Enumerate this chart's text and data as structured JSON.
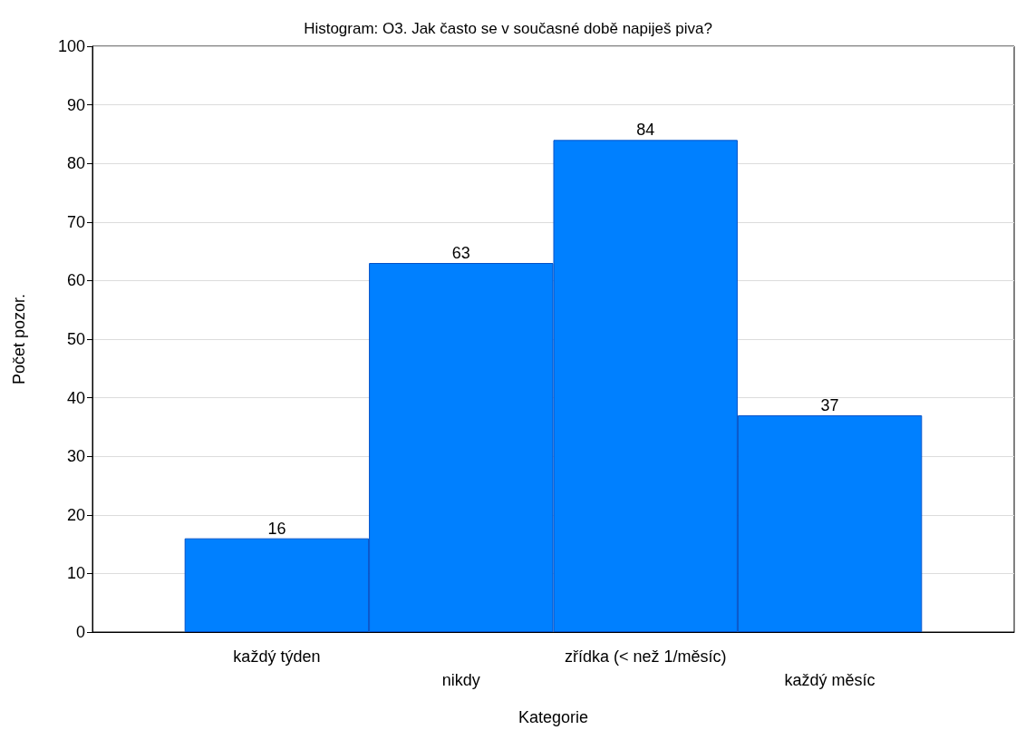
{
  "chart_data": {
    "type": "bar",
    "title": "Histogram: O3. Jak často se v současné době napiješ piva?",
    "xlabel": "Kategorie",
    "ylabel": "Počet pozor.",
    "categories": [
      "každý týden",
      "nikdy",
      "zřídka (< než 1/měsíc)",
      "každý měsíc"
    ],
    "values": [
      16,
      63,
      84,
      37
    ],
    "color": "#0080ff",
    "ylim": [
      0,
      100
    ],
    "yticks": [
      0,
      10,
      20,
      30,
      40,
      50,
      60,
      70,
      80,
      90,
      100
    ],
    "grid": "y",
    "data_labels": true
  }
}
